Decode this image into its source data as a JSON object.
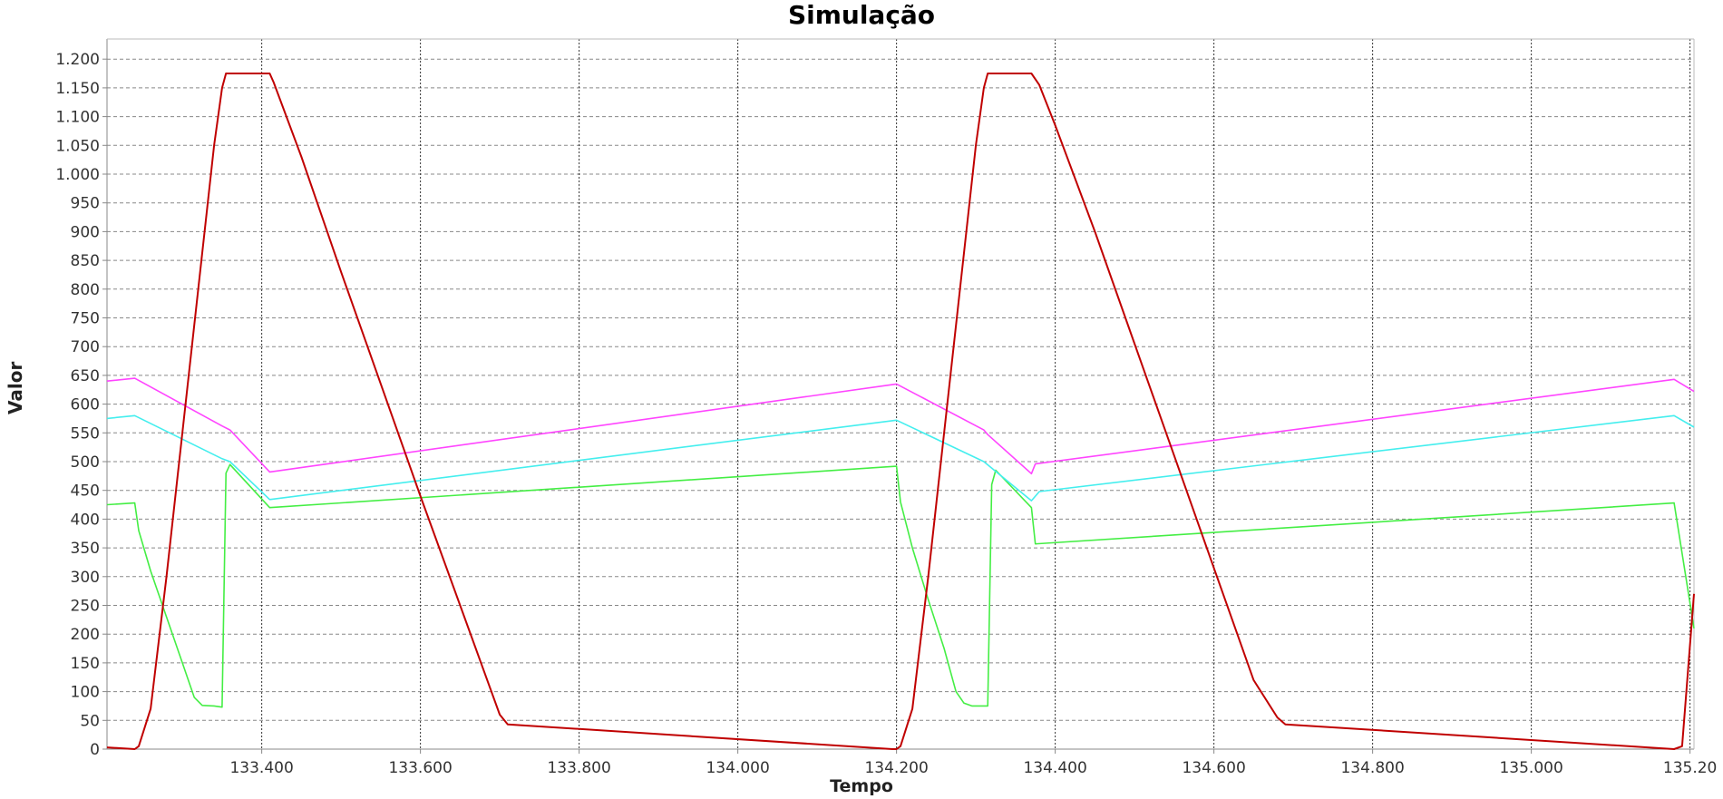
{
  "chart_data": {
    "type": "line",
    "title": "Simulação",
    "xlabel": "Tempo",
    "ylabel": "Valor",
    "xlim": [
      133.205,
      135.205
    ],
    "ylim": [
      0,
      1235
    ],
    "grid": true,
    "legend": "none",
    "x_ticks": [
      133.4,
      133.6,
      133.8,
      134.0,
      134.2,
      134.4,
      134.6,
      134.8,
      135.0,
      135.2
    ],
    "x_tick_labels": [
      "133.400",
      "133.600",
      "133.800",
      "134.000",
      "134.200",
      "134.400",
      "134.600",
      "134.800",
      "135.000",
      "135.20"
    ],
    "y_ticks": [
      0,
      50,
      100,
      150,
      200,
      250,
      300,
      350,
      400,
      450,
      500,
      550,
      600,
      650,
      700,
      750,
      800,
      850,
      900,
      950,
      1000,
      1050,
      1100,
      1150,
      1200
    ],
    "y_tick_labels": [
      "0",
      "50",
      "100",
      "150",
      "200",
      "250",
      "300",
      "350",
      "400",
      "450",
      "500",
      "550",
      "600",
      "650",
      "700",
      "750",
      "800",
      "850",
      "900",
      "950",
      "1.000",
      "1.050",
      "1.100",
      "1.150",
      "1.200"
    ],
    "series": [
      {
        "color": "#c00000",
        "points": [
          [
            133.205,
            3
          ],
          [
            133.24,
            0
          ],
          [
            133.245,
            5
          ],
          [
            133.26,
            70
          ],
          [
            133.28,
            300
          ],
          [
            133.3,
            550
          ],
          [
            133.32,
            800
          ],
          [
            133.34,
            1050
          ],
          [
            133.35,
            1150
          ],
          [
            133.355,
            1175
          ],
          [
            133.41,
            1175
          ],
          [
            133.415,
            1160
          ],
          [
            133.45,
            1030
          ],
          [
            133.5,
            830
          ],
          [
            133.55,
            635
          ],
          [
            133.6,
            440
          ],
          [
            133.65,
            250
          ],
          [
            133.7,
            60
          ],
          [
            133.71,
            43
          ],
          [
            134.195,
            0
          ],
          [
            134.2,
            0
          ],
          [
            134.205,
            5
          ],
          [
            134.22,
            70
          ],
          [
            134.24,
            300
          ],
          [
            134.26,
            550
          ],
          [
            134.28,
            800
          ],
          [
            134.3,
            1050
          ],
          [
            134.31,
            1150
          ],
          [
            134.315,
            1175
          ],
          [
            134.37,
            1175
          ],
          [
            134.38,
            1155
          ],
          [
            134.4,
            1085
          ],
          [
            134.45,
            900
          ],
          [
            134.5,
            705
          ],
          [
            134.55,
            510
          ],
          [
            134.6,
            315
          ],
          [
            134.65,
            120
          ],
          [
            134.68,
            55
          ],
          [
            134.69,
            43
          ],
          [
            135.18,
            0
          ],
          [
            135.19,
            5
          ],
          [
            135.205,
            270
          ]
        ]
      },
      {
        "color": "#ff44ff",
        "points": [
          [
            133.205,
            640
          ],
          [
            133.24,
            645
          ],
          [
            133.35,
            562
          ],
          [
            133.36,
            555
          ],
          [
            133.41,
            482
          ],
          [
            134.2,
            635
          ],
          [
            134.31,
            555
          ],
          [
            134.315,
            547
          ],
          [
            134.37,
            479
          ],
          [
            134.375,
            496
          ],
          [
            135.18,
            643
          ],
          [
            135.205,
            622
          ]
        ]
      },
      {
        "color": "#44eeee",
        "points": [
          [
            133.205,
            575
          ],
          [
            133.24,
            580
          ],
          [
            133.35,
            505
          ],
          [
            133.36,
            500
          ],
          [
            133.41,
            434
          ],
          [
            134.2,
            572
          ],
          [
            134.31,
            500
          ],
          [
            134.37,
            432
          ],
          [
            134.38,
            448
          ],
          [
            135.18,
            580
          ],
          [
            135.205,
            560
          ]
        ]
      },
      {
        "color": "#44ee44",
        "points": [
          [
            133.205,
            425
          ],
          [
            133.24,
            428
          ],
          [
            133.245,
            380
          ],
          [
            133.26,
            310
          ],
          [
            133.28,
            230
          ],
          [
            133.3,
            150
          ],
          [
            133.315,
            90
          ],
          [
            133.325,
            76
          ],
          [
            133.34,
            75
          ],
          [
            133.35,
            73
          ],
          [
            133.355,
            480
          ],
          [
            133.36,
            495
          ],
          [
            133.41,
            420
          ],
          [
            134.2,
            492
          ],
          [
            134.205,
            430
          ],
          [
            134.22,
            350
          ],
          [
            134.24,
            260
          ],
          [
            134.26,
            175
          ],
          [
            134.275,
            100
          ],
          [
            134.285,
            80
          ],
          [
            134.295,
            75
          ],
          [
            134.315,
            75
          ],
          [
            134.32,
            460
          ],
          [
            134.325,
            485
          ],
          [
            134.37,
            420
          ],
          [
            134.375,
            357
          ],
          [
            135.18,
            428
          ],
          [
            135.205,
            210
          ]
        ]
      }
    ]
  }
}
